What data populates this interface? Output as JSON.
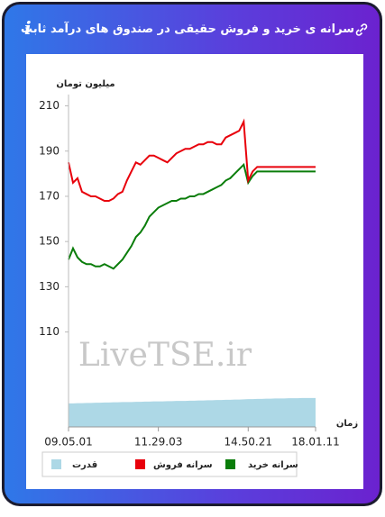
{
  "chart_data": {
    "type": "line",
    "title": "سرانه ی خرید و فروش حقیقی در صندوق های درآمد ثابت",
    "y_label": "میلیون تومان",
    "x_label": "زمان",
    "watermark": "LiveTSE.ir",
    "ylim": [
      68,
      215
    ],
    "yticks": [
      110,
      130,
      150,
      170,
      190,
      210
    ],
    "xlim": [
      0,
      55
    ],
    "xticks": [
      {
        "value": 0,
        "label": "09.05.01"
      },
      {
        "value": 20,
        "label": "11.29.03"
      },
      {
        "value": 40,
        "label": "14.50.21"
      },
      {
        "value": 55,
        "label": "18.01.11"
      }
    ],
    "series": [
      {
        "name": "سرانه خرید",
        "color": "#0a7d0a",
        "type": "line",
        "values": [
          142,
          147,
          143,
          141,
          140,
          140,
          139,
          139,
          140,
          139,
          138,
          140,
          142,
          145,
          148,
          152,
          154,
          157,
          161,
          163,
          165,
          166,
          167,
          168,
          168,
          169,
          169,
          170,
          170,
          171,
          171,
          172,
          173,
          174,
          175,
          177,
          178,
          180,
          182,
          184,
          176,
          179,
          181,
          181,
          181,
          181,
          181,
          181,
          181,
          181,
          181,
          181,
          181,
          181,
          181,
          181
        ]
      },
      {
        "name": "سرانه فروش",
        "color": "#e8000b",
        "type": "line",
        "values": [
          185,
          176,
          178,
          172,
          171,
          170,
          170,
          169,
          168,
          168,
          169,
          171,
          172,
          177,
          181,
          185,
          184,
          186,
          188,
          188,
          187,
          186,
          185,
          187,
          189,
          190,
          191,
          191,
          192,
          193,
          193,
          194,
          194,
          193,
          193,
          196,
          197,
          198,
          199,
          203,
          177,
          181,
          183,
          183,
          183,
          183,
          183,
          183,
          183,
          183,
          183,
          183,
          183,
          183,
          183,
          183
        ]
      },
      {
        "name": "قدرت",
        "color": "#add8e6",
        "type": "area",
        "values": [
          78.4,
          78.4,
          78.5,
          78.5,
          78.6,
          78.6,
          78.7,
          78.7,
          78.8,
          78.8,
          78.9,
          78.9,
          79,
          79,
          79,
          79.1,
          79.1,
          79.2,
          79.2,
          79.3,
          79.3,
          79.3,
          79.4,
          79.4,
          79.5,
          79.5,
          79.5,
          79.6,
          79.6,
          79.7,
          79.7,
          79.8,
          79.8,
          79.9,
          79.9,
          80,
          80,
          80.1,
          80.1,
          80.2,
          80.3,
          80.3,
          80.4,
          80.4,
          80.5,
          80.5,
          80.6,
          80.6,
          80.6,
          80.7,
          80.7,
          80.7,
          80.8,
          80.8,
          80.8,
          80.8
        ]
      }
    ]
  }
}
